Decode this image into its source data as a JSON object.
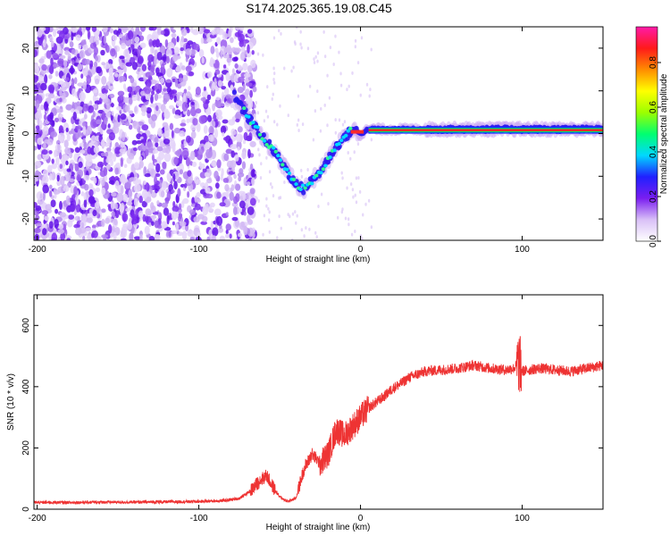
{
  "title": "S174.2025.365.19.08.C45",
  "chart_data": [
    {
      "type": "heatmap",
      "xlabel": "Height of straight line (km)",
      "ylabel": "Frequency (Hz)",
      "xlim": [
        -202,
        150
      ],
      "ylim": [
        -25,
        25
      ],
      "x_ticks": [
        -200,
        -100,
        0,
        100
      ],
      "y_ticks": [
        20,
        10,
        0,
        -10,
        -20
      ],
      "colorbar": {
        "label": "Normalized spectral amplitude",
        "range": [
          0.0,
          0.96
        ],
        "ticks": [
          0.0,
          0.2,
          0.4,
          0.6,
          0.8
        ]
      },
      "signal_track": {
        "x": [
          -78,
          -70,
          -60,
          -50,
          -45,
          -40,
          -35,
          -30,
          -25,
          -20,
          -15,
          -10,
          -5,
          0,
          5,
          10,
          20,
          40,
          60,
          80,
          100,
          120,
          150
        ],
        "y": [
          9,
          4,
          -1,
          -6,
          -9,
          -12,
          -13,
          -11,
          -9,
          -6,
          -3,
          -1,
          1,
          0,
          1,
          1,
          1,
          1,
          1,
          1,
          1,
          1,
          1
        ]
      },
      "noise_region_x": [
        -202,
        -65
      ]
    },
    {
      "type": "line",
      "xlabel": "Height of straight line (km)",
      "ylabel": "SNR (10 * v/v)",
      "xlim": [
        -202,
        150
      ],
      "ylim": [
        0,
        700
      ],
      "x_ticks": [
        -200,
        -100,
        0,
        100
      ],
      "y_ticks": [
        0,
        200,
        400,
        600
      ],
      "series": [
        {
          "color": "#ee3333",
          "x": [
            -202,
            -180,
            -160,
            -140,
            -120,
            -100,
            -85,
            -75,
            -68,
            -62,
            -58,
            -55,
            -50,
            -45,
            -40,
            -35,
            -30,
            -25,
            -20,
            -15,
            -10,
            -5,
            0,
            5,
            10,
            15,
            20,
            25,
            30,
            35,
            40,
            50,
            60,
            70,
            80,
            90,
            95,
            98,
            100,
            105,
            110,
            120,
            130,
            140,
            150
          ],
          "y": [
            22,
            22,
            23,
            23,
            24,
            25,
            28,
            35,
            60,
            95,
            110,
            80,
            40,
            25,
            35,
            130,
            180,
            150,
            180,
            260,
            240,
            270,
            300,
            330,
            350,
            370,
            395,
            410,
            430,
            440,
            450,
            455,
            460,
            470,
            460,
            455,
            460,
            480,
            450,
            455,
            460,
            455,
            450,
            460,
            470
          ]
        }
      ]
    }
  ]
}
